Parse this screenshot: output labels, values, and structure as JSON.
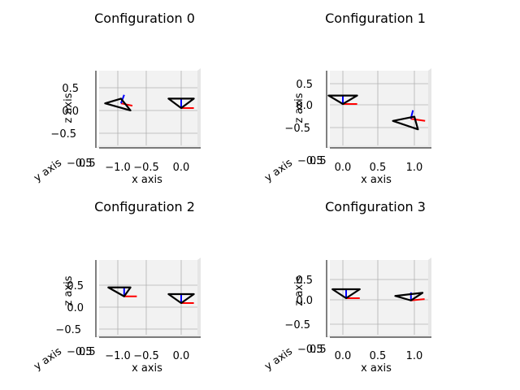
{
  "chart_data": [
    {
      "type": "3d-line",
      "title": "Configuration 0",
      "xlabel": "x axis",
      "ylabel": "y axis",
      "zlabel": "z axis",
      "xticks": [
        "−1.0",
        "−0.5",
        "0.0"
      ],
      "yticks": [
        "0.5",
        "−0.5"
      ],
      "zticks": [
        "0.5",
        "0.0",
        "−0.5"
      ],
      "xlim": [
        -1.3,
        0.3
      ],
      "zlim": [
        -0.6,
        0.6
      ],
      "grid": true,
      "bodies": [
        {
          "origin": [
            0.0,
            0.0,
            0.0
          ],
          "triangle": [
            [
              -0.2,
              0.0,
              0.2
            ],
            [
              0.2,
              0.0,
              0.2
            ],
            [
              0.0,
              0.0,
              0.0
            ]
          ],
          "axis_x": [
            [
              0.0,
              0.0,
              0.0
            ],
            [
              0.2,
              0.0,
              0.0
            ]
          ],
          "axis_z": [
            [
              0.0,
              0.0,
              0.0
            ],
            [
              0.0,
              0.0,
              0.2
            ]
          ]
        },
        {
          "origin": [
            -0.95,
            0.0,
            0.1
          ],
          "triangle": [
            [
              -1.2,
              0.0,
              0.1
            ],
            [
              -0.95,
              0.0,
              0.2
            ],
            [
              -0.8,
              0.0,
              -0.05
            ]
          ],
          "axis_x": [
            [
              -0.95,
              0.0,
              0.1
            ],
            [
              -0.77,
              0.0,
              0.05
            ]
          ],
          "axis_z": [
            [
              -0.95,
              0.0,
              0.1
            ],
            [
              -0.9,
              0.0,
              0.28
            ]
          ]
        }
      ]
    },
    {
      "type": "3d-line",
      "title": "Configuration 1",
      "xlabel": "x axis",
      "ylabel": "y axis",
      "zlabel": "z axis",
      "xticks": [
        "0.0",
        "0.5",
        "1.0"
      ],
      "yticks": [
        "0.5",
        "−0.5"
      ],
      "zticks": [
        "0.5",
        "0.0",
        "−0.5"
      ],
      "xlim": [
        -0.2,
        1.2
      ],
      "zlim": [
        -0.6,
        0.7
      ],
      "grid": true,
      "bodies": [
        {
          "origin": [
            0.0,
            0.0,
            0.0
          ],
          "triangle": [
            [
              -0.2,
              0.0,
              0.2
            ],
            [
              0.2,
              0.0,
              0.2
            ],
            [
              0.0,
              0.0,
              0.0
            ]
          ],
          "axis_x": [
            [
              0.0,
              0.0,
              0.0
            ],
            [
              0.2,
              0.0,
              0.0
            ]
          ],
          "axis_z": [
            [
              0.0,
              0.0,
              0.0
            ],
            [
              0.0,
              0.0,
              0.2
            ]
          ]
        },
        {
          "origin": [
            0.95,
            0.0,
            -0.35
          ],
          "triangle": [
            [
              0.7,
              0.0,
              -0.4
            ],
            [
              1.0,
              0.0,
              -0.3
            ],
            [
              1.05,
              0.0,
              -0.6
            ]
          ],
          "axis_x": [
            [
              0.95,
              0.0,
              -0.35
            ],
            [
              1.15,
              0.0,
              -0.4
            ]
          ],
          "axis_z": [
            [
              0.95,
              0.0,
              -0.35
            ],
            [
              0.98,
              0.0,
              -0.15
            ]
          ]
        }
      ]
    },
    {
      "type": "3d-line",
      "title": "Configuration 2",
      "xlabel": "x axis",
      "ylabel": "y axis",
      "zlabel": "z axis",
      "xticks": [
        "−1.0",
        "−0.5",
        "0.0"
      ],
      "yticks": [
        "0.5",
        "−0.5"
      ],
      "zticks": [
        "0.5",
        "0.0",
        "−0.5"
      ],
      "xlim": [
        -1.3,
        0.3
      ],
      "zlim": [
        -0.6,
        0.9
      ],
      "grid": true,
      "bodies": [
        {
          "origin": [
            0.0,
            0.0,
            0.0
          ],
          "triangle": [
            [
              -0.2,
              0.0,
              0.2
            ],
            [
              0.2,
              0.0,
              0.2
            ],
            [
              0.0,
              0.0,
              0.0
            ]
          ],
          "axis_x": [
            [
              0.0,
              0.0,
              0.0
            ],
            [
              0.2,
              0.0,
              0.0
            ]
          ],
          "axis_z": [
            [
              0.0,
              0.0,
              0.0
            ],
            [
              0.0,
              0.0,
              0.2
            ]
          ]
        },
        {
          "origin": [
            -0.9,
            0.0,
            0.15
          ],
          "triangle": [
            [
              -1.15,
              0.0,
              0.35
            ],
            [
              -0.8,
              0.0,
              0.35
            ],
            [
              -0.9,
              0.0,
              0.15
            ]
          ],
          "axis_x": [
            [
              -0.9,
              0.0,
              0.15
            ],
            [
              -0.7,
              0.0,
              0.15
            ]
          ],
          "axis_z": [
            [
              -0.9,
              0.0,
              0.15
            ],
            [
              -0.9,
              0.0,
              0.35
            ]
          ]
        }
      ]
    },
    {
      "type": "3d-line",
      "title": "Configuration 3",
      "xlabel": "x axis",
      "ylabel": "y axis",
      "zlabel": "z axis",
      "xticks": [
        "0.0",
        "0.5",
        "1.0"
      ],
      "yticks": [
        "0.5",
        "−0.5"
      ],
      "zticks": [
        "0.5",
        "0.0",
        "−0.5"
      ],
      "xlim": [
        -0.2,
        1.3
      ],
      "zlim": [
        -0.6,
        0.9
      ],
      "grid": true,
      "bodies": [
        {
          "origin": [
            0.0,
            0.0,
            0.0
          ],
          "triangle": [
            [
              -0.2,
              0.0,
              0.2
            ],
            [
              0.2,
              0.0,
              0.2
            ],
            [
              0.0,
              0.0,
              0.0
            ]
          ],
          "axis_x": [
            [
              0.0,
              0.0,
              0.0
            ],
            [
              0.2,
              0.0,
              0.0
            ]
          ],
          "axis_z": [
            [
              0.0,
              0.0,
              0.0
            ],
            [
              0.0,
              0.0,
              0.2
            ]
          ]
        },
        {
          "origin": [
            0.95,
            0.0,
            -0.05
          ],
          "triangle": [
            [
              0.72,
              0.0,
              0.05
            ],
            [
              1.12,
              0.0,
              0.12
            ],
            [
              0.95,
              0.0,
              -0.05
            ]
          ],
          "axis_x": [
            [
              0.95,
              0.0,
              -0.05
            ],
            [
              1.15,
              0.0,
              -0.02
            ]
          ],
          "axis_z": [
            [
              0.95,
              0.0,
              -0.05
            ],
            [
              0.95,
              0.0,
              0.13
            ]
          ]
        }
      ]
    }
  ],
  "colors": {
    "pane": "#f2f2f2",
    "grid": "#b0b0b0",
    "triangle": "#000000",
    "axis_x": "#ff0000",
    "axis_z": "#0000ff"
  }
}
